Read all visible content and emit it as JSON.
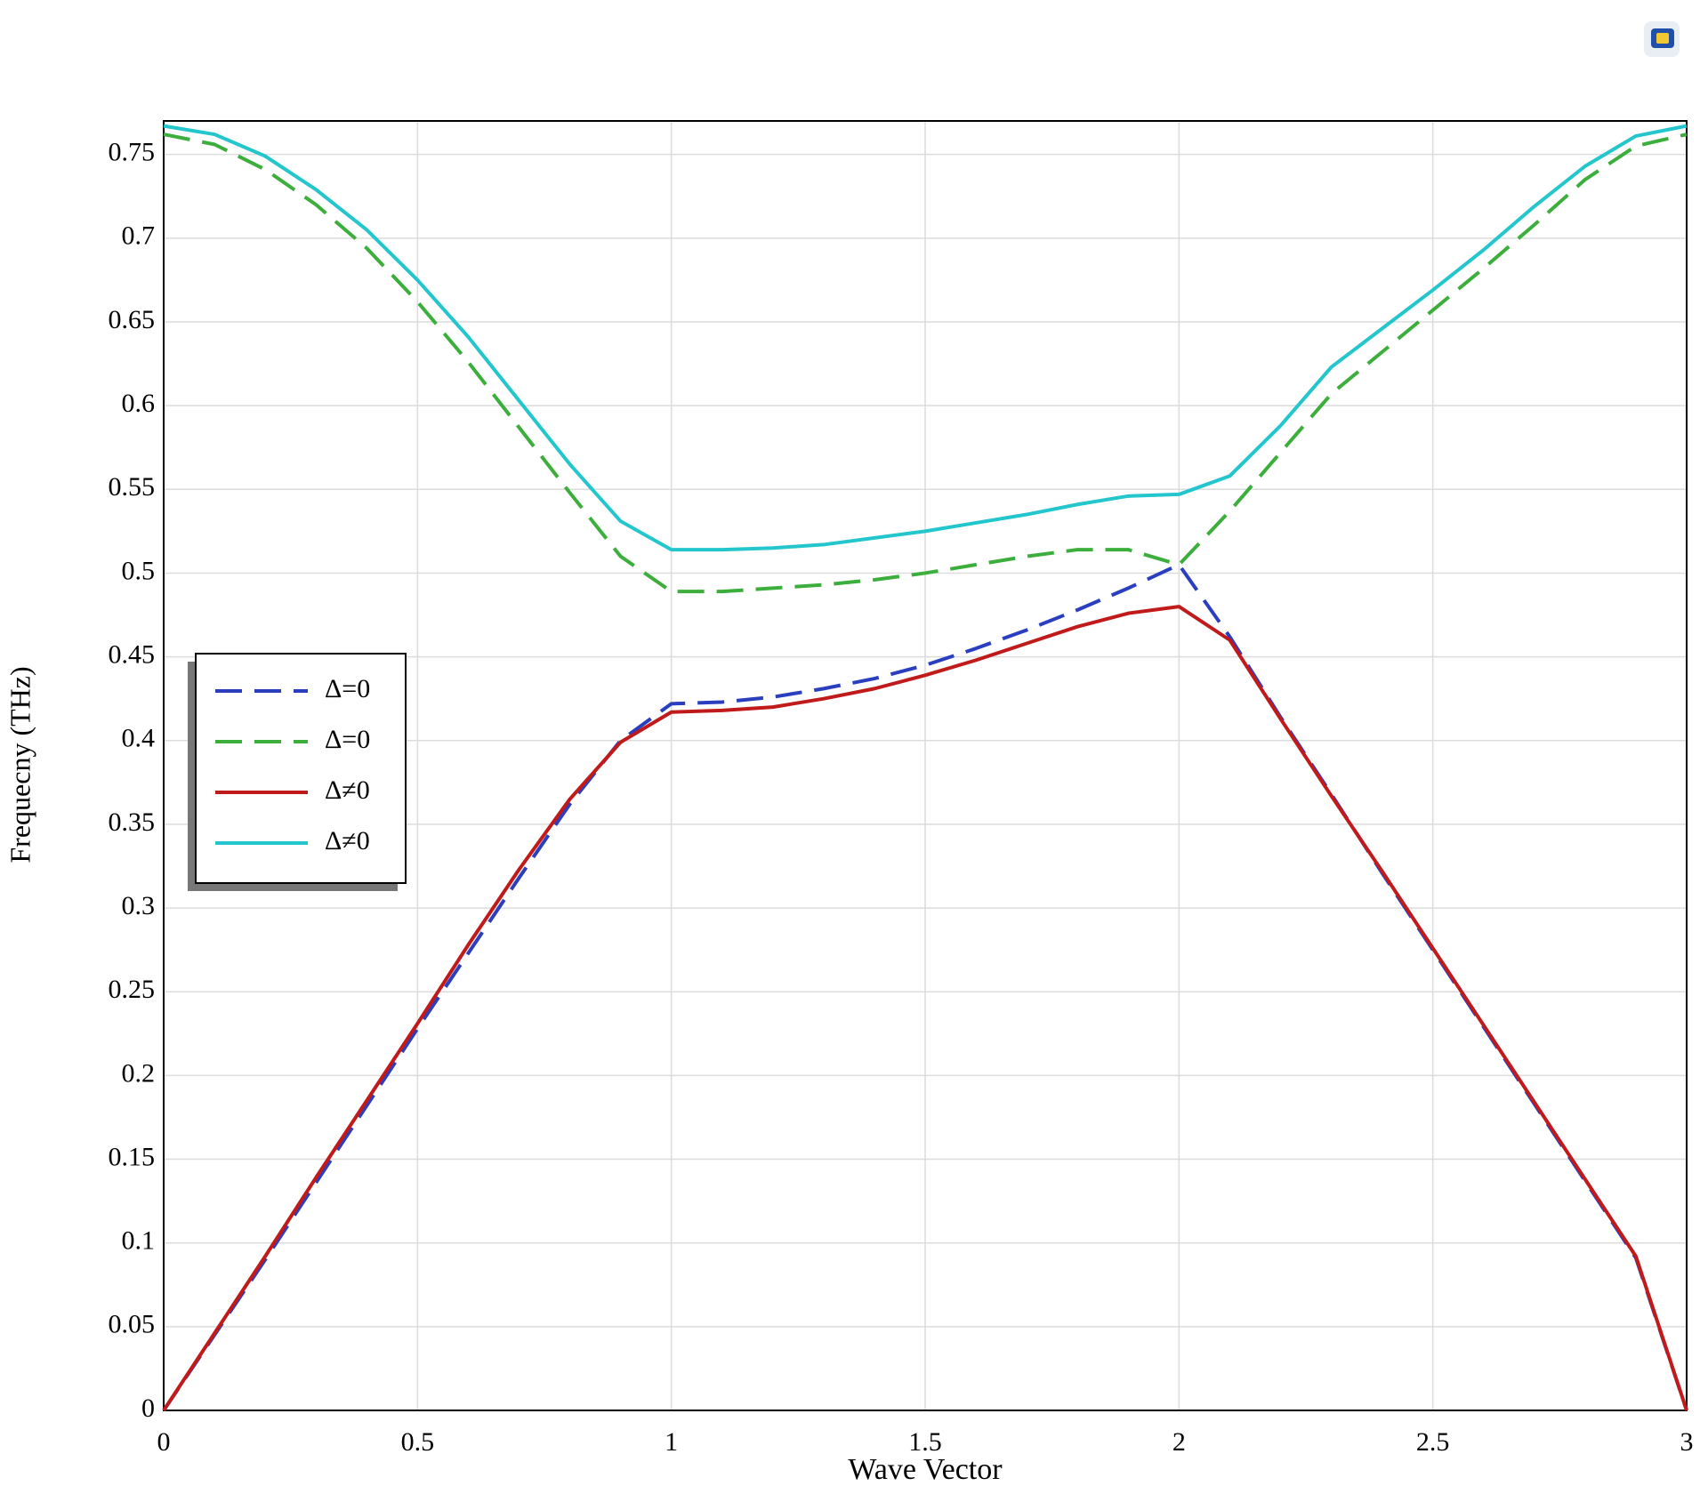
{
  "chart_data": {
    "type": "line",
    "x_label": "Wave Vector",
    "y_label": "Frequecny (THz)",
    "x": [
      0,
      0.1,
      0.2,
      0.3,
      0.4,
      0.5,
      0.6,
      0.7,
      0.8,
      0.9,
      1.0,
      1.1,
      1.2,
      1.3,
      1.4,
      1.5,
      1.6,
      1.7,
      1.8,
      1.9,
      2.0,
      2.1,
      2.2,
      2.3,
      2.4,
      2.5,
      2.6,
      2.7,
      2.8,
      2.9,
      3.0
    ],
    "series": [
      {
        "name": "Δ=0",
        "color": "#2a3fbf",
        "linestyle": "dashed",
        "values": [
          0,
          0.045,
          0.09,
          0.136,
          0.182,
          0.228,
          0.273,
          0.318,
          0.362,
          0.4,
          0.422,
          0.423,
          0.426,
          0.431,
          0.437,
          0.445,
          0.455,
          0.466,
          0.478,
          0.491,
          0.505,
          0.462,
          0.414,
          0.368,
          0.321,
          0.275,
          0.229,
          0.183,
          0.137,
          0.091,
          0
        ]
      },
      {
        "name": "Δ=0",
        "color": "#3cae3c",
        "linestyle": "dashed",
        "values": [
          0.762,
          0.756,
          0.741,
          0.72,
          0.694,
          0.662,
          0.626,
          0.587,
          0.548,
          0.51,
          0.489,
          0.489,
          0.491,
          0.493,
          0.496,
          0.5,
          0.505,
          0.51,
          0.514,
          0.514,
          0.505,
          0.537,
          0.572,
          0.607,
          0.632,
          0.657,
          0.682,
          0.708,
          0.735,
          0.755,
          0.762
        ]
      },
      {
        "name": "Δ≠0",
        "color": "#c01a1a",
        "linestyle": "solid",
        "values": [
          0,
          0.046,
          0.092,
          0.139,
          0.185,
          0.231,
          0.278,
          0.323,
          0.365,
          0.399,
          0.417,
          0.418,
          0.42,
          0.425,
          0.431,
          0.439,
          0.448,
          0.458,
          0.468,
          0.476,
          0.48,
          0.46,
          0.413,
          0.367,
          0.322,
          0.276,
          0.23,
          0.184,
          0.138,
          0.092,
          0
        ]
      },
      {
        "name": "Δ≠0",
        "color": "#22c6cc",
        "linestyle": "solid",
        "values": [
          0.767,
          0.762,
          0.749,
          0.729,
          0.705,
          0.675,
          0.641,
          0.603,
          0.565,
          0.531,
          0.514,
          0.514,
          0.515,
          0.517,
          0.521,
          0.525,
          0.53,
          0.535,
          0.541,
          0.546,
          0.547,
          0.558,
          0.588,
          0.623,
          0.646,
          0.669,
          0.693,
          0.719,
          0.743,
          0.761,
          0.767
        ]
      }
    ],
    "xlim": [
      0,
      3
    ],
    "ylim": [
      0,
      0.77
    ],
    "xticks": [
      0,
      0.5,
      1,
      1.5,
      2,
      2.5,
      3
    ],
    "yticks": [
      0,
      0.05,
      0.1,
      0.15,
      0.2,
      0.25,
      0.3,
      0.35,
      0.4,
      0.45,
      0.5,
      0.55,
      0.6,
      0.65,
      0.7,
      0.75
    ],
    "grid": true,
    "legend": "center left"
  }
}
